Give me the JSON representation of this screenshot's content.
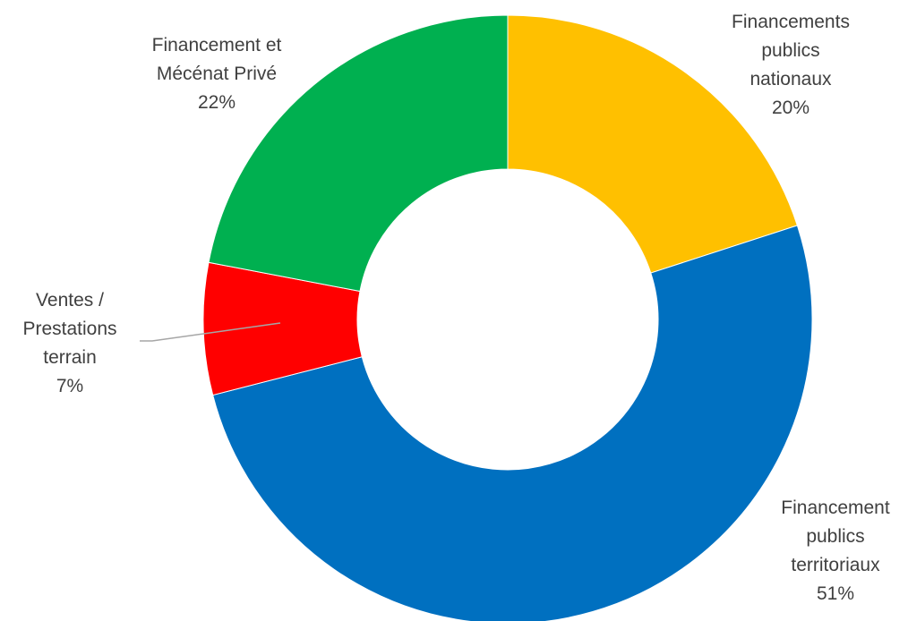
{
  "chart_data": {
    "type": "pie",
    "variant": "donut",
    "title": "",
    "slices": [
      {
        "label_lines": [
          "Financements",
          "publics",
          "nationaux"
        ],
        "percent_label": "20%",
        "value": 20,
        "color": "#FFC000"
      },
      {
        "label_lines": [
          "Financement",
          "publics",
          "territoriaux"
        ],
        "percent_label": "51%",
        "value": 51,
        "color": "#0070C0"
      },
      {
        "label_lines": [
          "Ventes /",
          "Prestations",
          "terrain"
        ],
        "percent_label": "7%",
        "value": 7,
        "color": "#FF0000"
      },
      {
        "label_lines": [
          "Financement et",
          "Mécénat Privé"
        ],
        "percent_label": "22%",
        "value": 22,
        "color": "#00B050"
      }
    ],
    "legend": "none",
    "label_color": "#404040",
    "leader_line_color": "#A6A6A6"
  }
}
